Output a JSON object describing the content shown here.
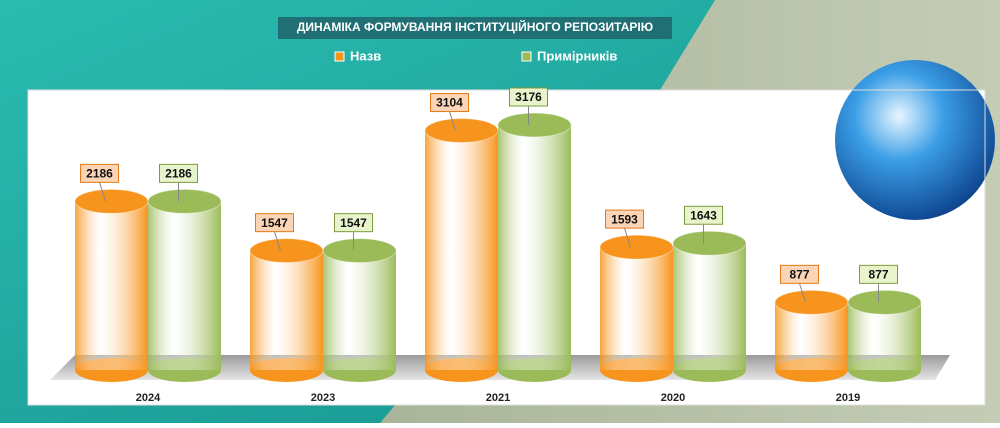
{
  "chart_data": {
    "type": "bar",
    "title": "ДИНАМІКА ФОРМУВАННЯ ІНСТИТУЦІЙНОГО РЕПОЗИТАРІЮ",
    "categories": [
      "2024",
      "2023",
      "2021",
      "2020",
      "2019"
    ],
    "series": [
      {
        "name": "Назв",
        "color": "#f7941d",
        "values": [
          2186,
          1547,
          3104,
          1593,
          877
        ]
      },
      {
        "name": "Примірників",
        "color": "#9bbb59",
        "values": [
          2186,
          1547,
          3176,
          1643,
          877
        ]
      }
    ]
  }
}
